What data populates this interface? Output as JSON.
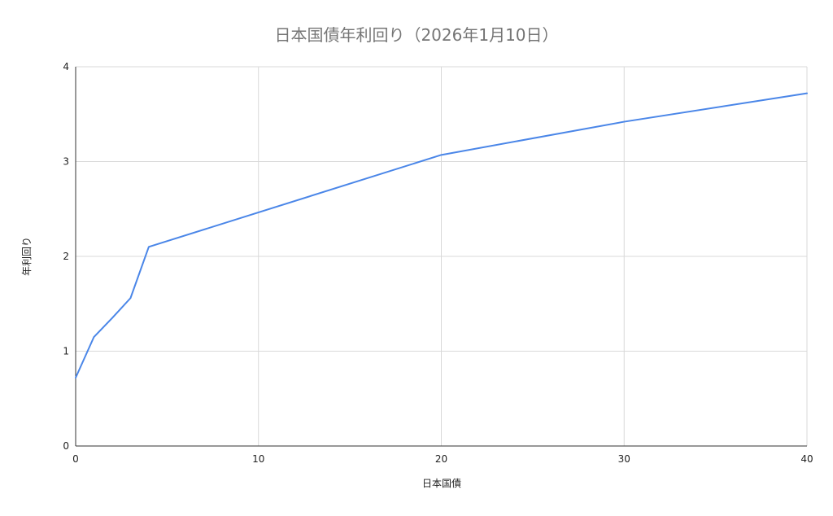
{
  "chart_data": {
    "type": "line",
    "title": "日本国債年利回り（2026年1月10日）",
    "xlabel": "日本国債",
    "ylabel": "年利回り",
    "xlim": [
      0,
      40
    ],
    "ylim": [
      0,
      4
    ],
    "xticks": [
      "0",
      "10",
      "20",
      "30",
      "40"
    ],
    "yticks": [
      "0",
      "1",
      "2",
      "3",
      "4"
    ],
    "grid": true,
    "series": [
      {
        "color": "#4a86e8",
        "x": [
          0,
          1,
          2,
          3,
          4,
          20,
          30,
          40
        ],
        "y": [
          0.72,
          1.15,
          1.35,
          1.56,
          2.1,
          3.07,
          3.42,
          3.72
        ]
      }
    ]
  }
}
